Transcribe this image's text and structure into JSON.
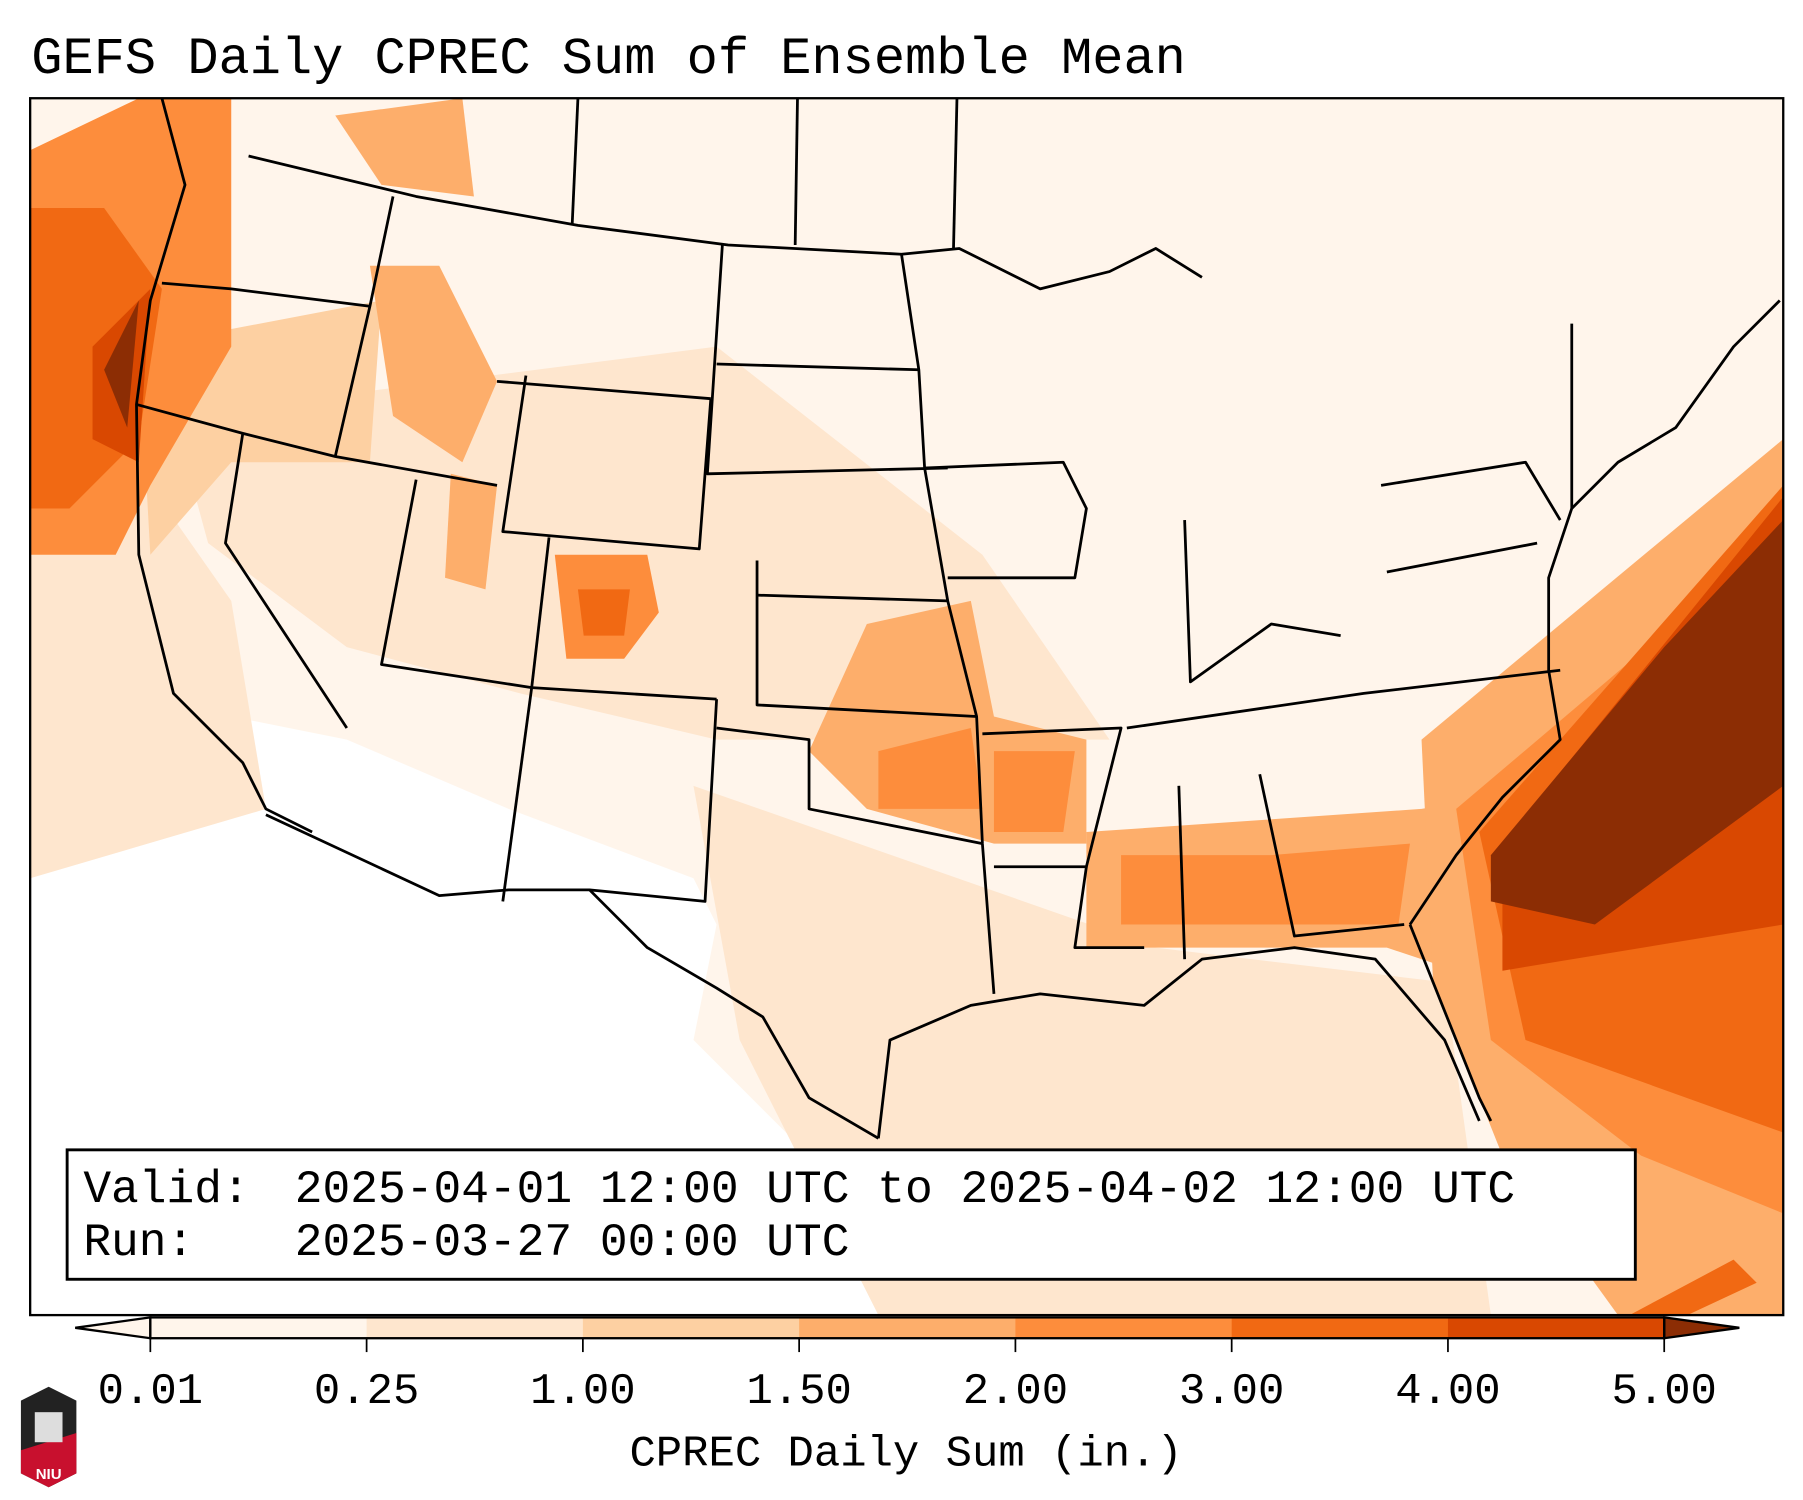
{
  "title": "GEFS Daily CPREC Sum of Ensemble Mean",
  "info": {
    "valid_label": "Valid:",
    "valid_value": "2025-04-01 12:00 UTC to 2025-04-02 12:00 UTC",
    "run_label": "Run:",
    "run_value": "2025-03-27 00:00 UTC"
  },
  "colorbar": {
    "label": "CPREC Daily Sum (in.)",
    "ticks": [
      "0.01",
      "0.25",
      "1.00",
      "1.50",
      "2.00",
      "3.00",
      "4.00",
      "5.00"
    ],
    "colors": [
      "#fff5eb",
      "#fee6ce",
      "#fdd0a2",
      "#fdae6b",
      "#fd8d3c",
      "#f16913",
      "#d94801",
      "#8c2d04"
    ]
  },
  "logo": {
    "text": "NIU",
    "color": "#c8102e"
  }
}
